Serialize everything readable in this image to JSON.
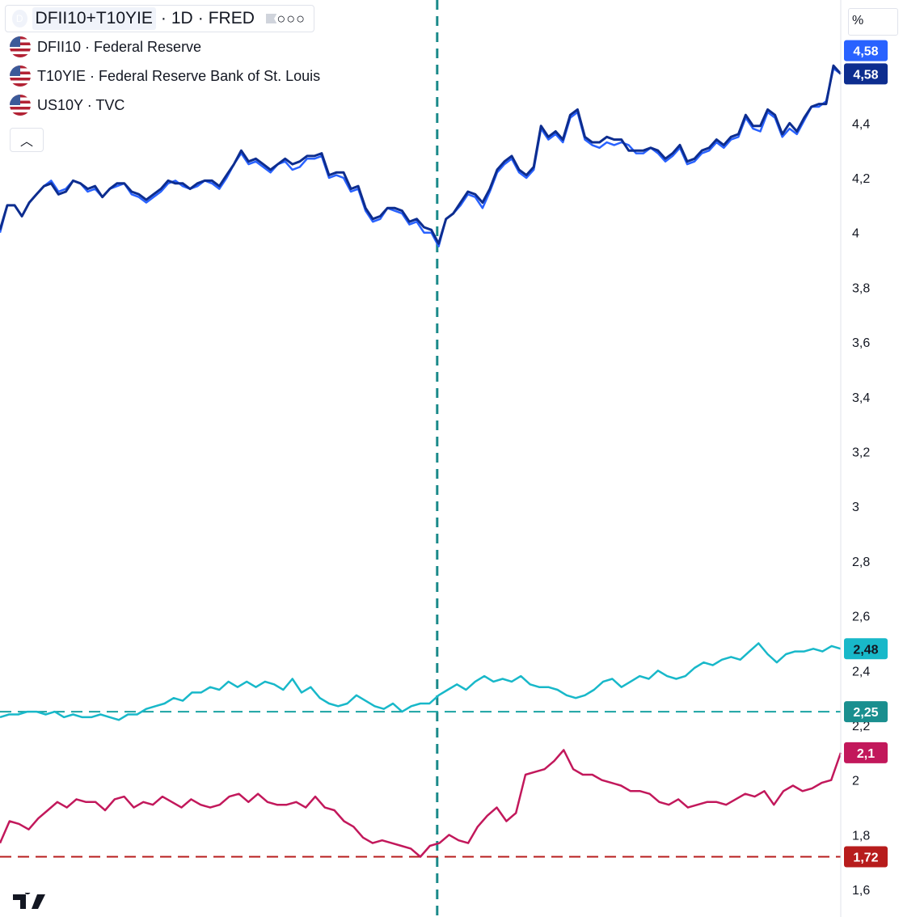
{
  "header": {
    "symbol_badge": "D",
    "symbol": "DFII10+T10YIE",
    "interval": "1D",
    "source": "FRED"
  },
  "legend": [
    {
      "label": "DFII10 · Federal Reserve"
    },
    {
      "label": "T10YIE · Federal Reserve Bank of St. Louis"
    },
    {
      "label": "US10Y · TVC"
    }
  ],
  "axis_unit": "%",
  "chart_data": {
    "type": "line",
    "y_ticks": [
      "1,6",
      "1,8",
      "2",
      "2,2",
      "2,4",
      "2,6",
      "2,8",
      "3",
      "3,2",
      "3,4",
      "3,6",
      "3,8",
      "4",
      "4,2",
      "4,4",
      "4,6"
    ],
    "ylim": [
      1.5,
      4.85
    ],
    "x_count": 130,
    "series": [
      {
        "name": "DFII10+T10YIE",
        "color": "#2962ff",
        "last_label": "4,58",
        "values": [
          4.0,
          4.1,
          4.1,
          4.06,
          4.11,
          4.14,
          4.17,
          4.19,
          4.15,
          4.16,
          4.19,
          4.18,
          4.15,
          4.16,
          4.13,
          4.16,
          4.17,
          4.18,
          4.14,
          4.13,
          4.11,
          4.13,
          4.15,
          4.18,
          4.19,
          4.17,
          4.16,
          4.17,
          4.19,
          4.18,
          4.16,
          4.2,
          4.25,
          4.29,
          4.25,
          4.26,
          4.24,
          4.22,
          4.25,
          4.26,
          4.23,
          4.24,
          4.27,
          4.27,
          4.28,
          4.2,
          4.21,
          4.2,
          4.15,
          4.16,
          4.08,
          4.04,
          4.05,
          4.09,
          4.08,
          4.07,
          4.03,
          4.04,
          4.0,
          4.0,
          3.95,
          4.05,
          4.07,
          4.1,
          4.14,
          4.13,
          4.09,
          4.15,
          4.22,
          4.25,
          4.27,
          4.22,
          4.2,
          4.23,
          4.38,
          4.34,
          4.36,
          4.33,
          4.42,
          4.44,
          4.34,
          4.32,
          4.31,
          4.33,
          4.32,
          4.33,
          4.32,
          4.29,
          4.29,
          4.31,
          4.29,
          4.26,
          4.28,
          4.31,
          4.25,
          4.26,
          4.29,
          4.3,
          4.33,
          4.31,
          4.34,
          4.35,
          4.42,
          4.38,
          4.37,
          4.44,
          4.42,
          4.35,
          4.38,
          4.36,
          4.41,
          4.46,
          4.46,
          4.48,
          4.6,
          4.58
        ],
        "series_index": 0
      },
      {
        "name": "US10Y",
        "color": "#0d2d8f",
        "last_label": "4,58",
        "values": [
          4.01,
          4.1,
          4.1,
          4.06,
          4.11,
          4.14,
          4.17,
          4.18,
          4.14,
          4.15,
          4.19,
          4.18,
          4.16,
          4.17,
          4.13,
          4.16,
          4.18,
          4.18,
          4.15,
          4.14,
          4.12,
          4.14,
          4.16,
          4.19,
          4.18,
          4.18,
          4.16,
          4.18,
          4.19,
          4.19,
          4.17,
          4.21,
          4.25,
          4.3,
          4.26,
          4.27,
          4.25,
          4.23,
          4.25,
          4.27,
          4.25,
          4.26,
          4.28,
          4.28,
          4.29,
          4.21,
          4.22,
          4.22,
          4.16,
          4.17,
          4.09,
          4.05,
          4.06,
          4.09,
          4.09,
          4.08,
          4.04,
          4.05,
          4.02,
          4.01,
          3.96,
          4.05,
          4.07,
          4.11,
          4.15,
          4.14,
          4.11,
          4.16,
          4.23,
          4.26,
          4.28,
          4.23,
          4.21,
          4.24,
          4.39,
          4.35,
          4.37,
          4.34,
          4.43,
          4.45,
          4.35,
          4.33,
          4.33,
          4.35,
          4.34,
          4.34,
          4.3,
          4.3,
          4.3,
          4.31,
          4.3,
          4.27,
          4.29,
          4.32,
          4.26,
          4.27,
          4.3,
          4.31,
          4.34,
          4.32,
          4.35,
          4.36,
          4.43,
          4.39,
          4.39,
          4.45,
          4.43,
          4.36,
          4.4,
          4.37,
          4.42,
          4.46,
          4.47,
          4.47,
          4.61,
          4.58
        ],
        "series_index": 1
      },
      {
        "name": "T10YIE",
        "color": "#18b8c9",
        "last_label": "2,48",
        "values": [
          2.23,
          2.24,
          2.24,
          2.25,
          2.25,
          2.24,
          2.25,
          2.23,
          2.24,
          2.23,
          2.23,
          2.24,
          2.23,
          2.22,
          2.24,
          2.24,
          2.26,
          2.27,
          2.28,
          2.3,
          2.29,
          2.32,
          2.32,
          2.34,
          2.33,
          2.36,
          2.34,
          2.36,
          2.34,
          2.36,
          2.35,
          2.33,
          2.37,
          2.32,
          2.34,
          2.3,
          2.28,
          2.27,
          2.28,
          2.31,
          2.29,
          2.27,
          2.26,
          2.28,
          2.25,
          2.27,
          2.28,
          2.28,
          2.31,
          2.33,
          2.35,
          2.33,
          2.36,
          2.38,
          2.36,
          2.37,
          2.36,
          2.38,
          2.35,
          2.34,
          2.34,
          2.33,
          2.31,
          2.3,
          2.31,
          2.33,
          2.36,
          2.37,
          2.34,
          2.36,
          2.38,
          2.37,
          2.4,
          2.38,
          2.37,
          2.38,
          2.41,
          2.43,
          2.42,
          2.44,
          2.45,
          2.44,
          2.47,
          2.5,
          2.46,
          2.43,
          2.46,
          2.47,
          2.47,
          2.48,
          2.47,
          2.49,
          2.48
        ],
        "series_index": 2
      },
      {
        "name": "DFII10",
        "color": "#c2185b",
        "last_label": "2,1",
        "values": [
          1.77,
          1.85,
          1.84,
          1.82,
          1.86,
          1.89,
          1.92,
          1.9,
          1.93,
          1.92,
          1.92,
          1.89,
          1.93,
          1.94,
          1.9,
          1.92,
          1.91,
          1.94,
          1.92,
          1.9,
          1.93,
          1.91,
          1.9,
          1.91,
          1.94,
          1.95,
          1.92,
          1.95,
          1.92,
          1.91,
          1.91,
          1.92,
          1.9,
          1.94,
          1.9,
          1.89,
          1.85,
          1.83,
          1.79,
          1.77,
          1.78,
          1.77,
          1.76,
          1.75,
          1.72,
          1.76,
          1.77,
          1.8,
          1.78,
          1.77,
          1.83,
          1.87,
          1.9,
          1.85,
          1.88,
          2.02,
          2.03,
          2.04,
          2.07,
          2.11,
          2.04,
          2.02,
          2.02,
          2.0,
          1.99,
          1.98,
          1.96,
          1.96,
          1.95,
          1.92,
          1.91,
          1.93,
          1.9,
          1.91,
          1.92,
          1.92,
          1.91,
          1.93,
          1.95,
          1.94,
          1.96,
          1.91,
          1.96,
          1.98,
          1.96,
          1.97,
          1.99,
          2.0,
          2.1
        ],
        "series_index": 3
      }
    ],
    "reference_lines": [
      {
        "label": "2,25",
        "value": 2.25,
        "color": "#1aa3a3"
      },
      {
        "label": "1,72",
        "value": 1.72,
        "color": "#b71c1c"
      }
    ],
    "crosshair_fraction": 0.52,
    "grid": false
  }
}
